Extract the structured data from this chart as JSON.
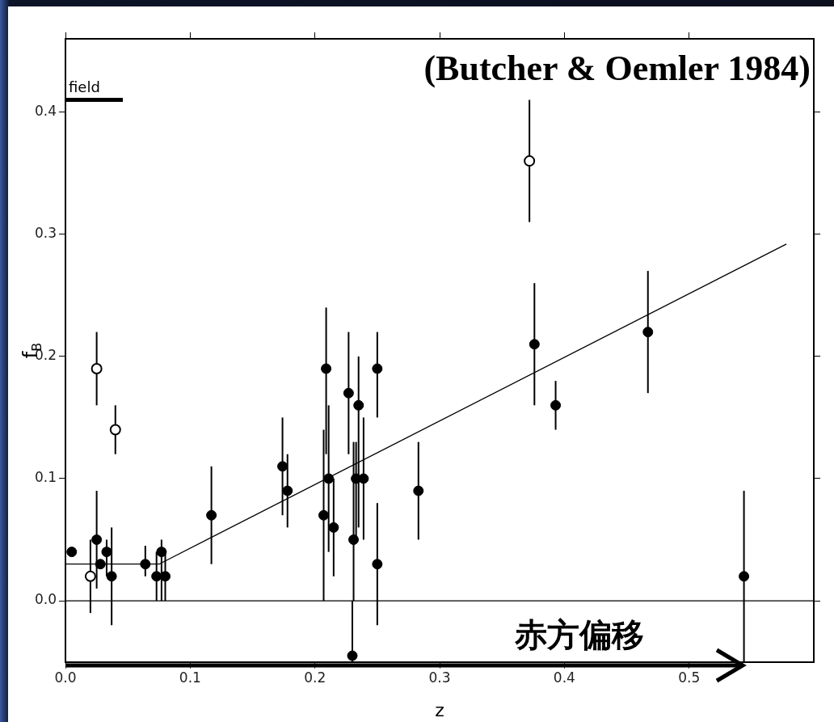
{
  "chart_data": {
    "type": "scatter",
    "xlabel": "z",
    "ylabel": "f$_{B}$",
    "annotations": [
      "(Butcher & Oemler 1984)",
      "赤方偏移"
    ],
    "xlim": [
      0,
      0.6
    ],
    "ylim": [
      -0.05,
      0.46
    ],
    "xticks": [
      {
        "value": 0,
        "label": "0.0"
      },
      {
        "value": 0.1,
        "label": "0.1"
      },
      {
        "value": 0.2,
        "label": "0.2"
      },
      {
        "value": 0.3,
        "label": "0.3"
      },
      {
        "value": 0.4,
        "label": "0.4"
      },
      {
        "value": 0.5,
        "label": "0.5"
      }
    ],
    "yticks": [
      {
        "value": 0,
        "label": "0.0"
      },
      {
        "value": 0.1,
        "label": "0.1"
      },
      {
        "value": 0.2,
        "label": "0.2"
      },
      {
        "value": 0.3,
        "label": "0.3"
      },
      {
        "value": 0.4,
        "label": "0.4"
      }
    ],
    "ref_lines": [
      {
        "axis": "y",
        "value": 0,
        "color": "#000000"
      }
    ],
    "marker": "circle",
    "legend": false,
    "series": [
      {
        "color": "#000000",
        "x": [
          0.005,
          0.025,
          0.028,
          0.033,
          0.037,
          0.064,
          0.073,
          0.077,
          0.08,
          0.117,
          0.174,
          0.178,
          0.207,
          0.209,
          0.211,
          0.215,
          0.227,
          0.23,
          0.231,
          0.233,
          0.235,
          0.239,
          0.25,
          0.25,
          0.283,
          0.376,
          0.393,
          0.467,
          0.544
        ],
        "values": [
          0.04,
          0.05,
          0.03,
          0.04,
          0.02,
          0.03,
          0.02,
          0.04,
          0.02,
          0.07,
          0.11,
          0.09,
          0.07,
          0.19,
          0.1,
          0.06,
          0.17,
          -0.045,
          0.05,
          0.1,
          0.16,
          0.1,
          0.19,
          0.03,
          0.09,
          0.21,
          0.16,
          0.22,
          0.02
        ],
        "errors": [
          null,
          [
            0.01,
            0.09
          ],
          null,
          [
            0.02,
            0.05
          ],
          [
            -0.02,
            0.06
          ],
          [
            0.02,
            0.045
          ],
          [
            0,
            0.04
          ],
          [
            0,
            0.05
          ],
          [
            0,
            0.04
          ],
          [
            0.03,
            0.11
          ],
          [
            0.07,
            0.15
          ],
          [
            0.06,
            0.12
          ],
          [
            0,
            0.14
          ],
          [
            0.12,
            0.24
          ],
          [
            0.04,
            0.16
          ],
          [
            0.02,
            0.1
          ],
          [
            0.12,
            0.22
          ],
          [
            -0.05,
            0
          ],
          [
            0,
            0.13
          ],
          [
            0.05,
            0.13
          ],
          [
            0.06,
            0.2
          ],
          [
            0.05,
            0.15
          ],
          [
            0.15,
            0.22
          ],
          [
            -0.02,
            0.08
          ],
          [
            0.05,
            0.13
          ],
          [
            0.16,
            0.26
          ],
          [
            0.14,
            0.18
          ],
          [
            0.17,
            0.27
          ],
          [
            -0.05,
            0.09
          ]
        ]
      },
      {
        "color": "#000000",
        "marker": "circle-open",
        "x": [
          0.02,
          0.025,
          0.04,
          0.372
        ],
        "values": [
          0.02,
          0.19,
          0.14,
          0.36
        ],
        "errors": [
          [
            -0.01,
            0.05
          ],
          [
            0.16,
            0.22
          ],
          [
            0.12,
            0.16
          ],
          [
            0.31,
            0.41
          ]
        ]
      },
      {
        "type": "line",
        "color": "#000000",
        "marker": "none",
        "x": [
          0,
          0.075,
          0.578
        ],
        "values": [
          0.03,
          0.03,
          0.292
        ]
      },
      {
        "type": "line",
        "color": "#000000",
        "marker": "none",
        "name": "field",
        "x": [
          0,
          0.046
        ],
        "values": [
          0.41,
          0.41
        ]
      }
    ]
  }
}
